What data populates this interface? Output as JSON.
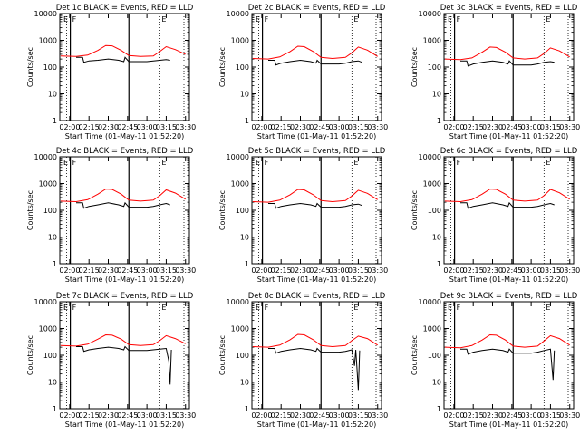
{
  "figure": {
    "y_ticks": [
      "10000",
      "1000",
      "100",
      "10",
      "1"
    ],
    "x_ticks": [
      "02:00",
      "02:15",
      "02:30",
      "02:45",
      "03:00",
      "03:15",
      "03:30"
    ],
    "ylabel": "Counts/sec",
    "xlabel": "Start Time (01-May-11 01:52:20)",
    "markers": [
      "E",
      "F",
      "E"
    ],
    "colors": {
      "events": "#000000",
      "lld": "#ff0000",
      "axes": "#000000"
    }
  },
  "chart_data": [
    {
      "type": "line",
      "title": "Det 1c BLACK = Events, RED = LLD",
      "ylim": [
        1,
        10000
      ],
      "yscale": "log",
      "xlim": [
        "01:52:20",
        "03:33:00"
      ],
      "markers": [
        "E",
        "F",
        "E"
      ],
      "series": [
        {
          "name": "LLD",
          "color": "#ff0000",
          "x": [
            "01:53",
            "02:05",
            "02:14",
            "02:22",
            "02:28",
            "02:33",
            "02:40",
            "02:46",
            "02:55",
            "03:05",
            "03:10",
            "03:15",
            "03:22",
            "03:30"
          ],
          "values": [
            260,
            250,
            280,
            420,
            640,
            620,
            420,
            270,
            250,
            260,
            380,
            580,
            450,
            300
          ]
        },
        {
          "name": "Events",
          "color": "#000000",
          "x": [
            "02:05",
            "02:10",
            "02:11",
            "02:15",
            "02:22",
            "02:30",
            "02:38",
            "02:42",
            "02:43",
            "02:46",
            "02:55",
            "03:00",
            "03:05",
            "03:10",
            "03:15",
            "03:18"
          ],
          "values": [
            230,
            230,
            150,
            170,
            180,
            200,
            180,
            160,
            230,
            160,
            160,
            160,
            170,
            180,
            190,
            180
          ]
        }
      ]
    },
    {
      "type": "line",
      "title": "Det 2c BLACK = Events, RED = LLD",
      "ylim": [
        1,
        10000
      ],
      "yscale": "log",
      "xlim": [
        "01:52:20",
        "03:33:00"
      ],
      "markers": [
        "E",
        "F",
        "E"
      ],
      "series": [
        {
          "name": "LLD",
          "color": "#ff0000",
          "x": [
            "01:53",
            "02:05",
            "02:14",
            "02:22",
            "02:28",
            "02:33",
            "02:40",
            "02:46",
            "02:55",
            "03:05",
            "03:10",
            "03:15",
            "03:22",
            "03:30"
          ],
          "values": [
            210,
            200,
            240,
            380,
            600,
            580,
            380,
            230,
            210,
            230,
            340,
            560,
            430,
            250
          ]
        },
        {
          "name": "Events",
          "color": "#000000",
          "x": [
            "02:05",
            "02:10",
            "02:11",
            "02:15",
            "02:22",
            "02:30",
            "02:38",
            "02:42",
            "02:43",
            "02:46",
            "02:55",
            "03:00",
            "03:05",
            "03:10",
            "03:15",
            "03:18"
          ],
          "values": [
            180,
            180,
            120,
            140,
            160,
            180,
            160,
            140,
            180,
            130,
            130,
            130,
            140,
            160,
            170,
            150
          ]
        }
      ]
    },
    {
      "type": "line",
      "title": "Det 3c BLACK = Events, RED = LLD",
      "ylim": [
        1,
        10000
      ],
      "yscale": "log",
      "xlim": [
        "01:52:20",
        "03:33:00"
      ],
      "markers": [
        "E",
        "F",
        "E"
      ],
      "series": [
        {
          "name": "LLD",
          "color": "#ff0000",
          "x": [
            "01:53",
            "02:05",
            "02:14",
            "02:22",
            "02:28",
            "02:33",
            "02:40",
            "02:46",
            "02:55",
            "03:05",
            "03:10",
            "03:15",
            "03:22",
            "03:30"
          ],
          "values": [
            200,
            190,
            220,
            360,
            560,
            540,
            360,
            220,
            200,
            220,
            320,
            520,
            400,
            240
          ]
        },
        {
          "name": "Events",
          "color": "#000000",
          "x": [
            "02:05",
            "02:10",
            "02:11",
            "02:15",
            "02:22",
            "02:30",
            "02:38",
            "02:42",
            "02:43",
            "02:46",
            "02:55",
            "03:00",
            "03:05",
            "03:10",
            "03:15",
            "03:18"
          ],
          "values": [
            170,
            170,
            110,
            130,
            150,
            170,
            150,
            130,
            170,
            120,
            120,
            120,
            130,
            150,
            160,
            150
          ]
        }
      ]
    },
    {
      "type": "line",
      "title": "Det 4c BLACK = Events, RED = LLD",
      "ylim": [
        1,
        10000
      ],
      "yscale": "log",
      "xlim": [
        "01:52:20",
        "03:33:00"
      ],
      "markers": [
        "E",
        "F",
        "E"
      ],
      "series": [
        {
          "name": "LLD",
          "color": "#ff0000",
          "x": [
            "01:53",
            "02:05",
            "02:14",
            "02:22",
            "02:28",
            "02:33",
            "02:40",
            "02:46",
            "02:55",
            "03:05",
            "03:10",
            "03:15",
            "03:22",
            "03:30"
          ],
          "values": [
            220,
            210,
            250,
            400,
            620,
            600,
            400,
            240,
            220,
            240,
            350,
            580,
            440,
            260
          ]
        },
        {
          "name": "Events",
          "color": "#000000",
          "x": [
            "02:05",
            "02:10",
            "02:11",
            "02:15",
            "02:22",
            "02:30",
            "02:38",
            "02:42",
            "02:43",
            "02:46",
            "02:55",
            "03:00",
            "03:05",
            "03:10",
            "03:15",
            "03:18"
          ],
          "values": [
            190,
            190,
            120,
            140,
            160,
            190,
            160,
            140,
            190,
            130,
            130,
            130,
            140,
            160,
            180,
            160
          ]
        }
      ]
    },
    {
      "type": "line",
      "title": "Det 5c BLACK = Events, RED = LLD",
      "ylim": [
        1,
        10000
      ],
      "yscale": "log",
      "xlim": [
        "01:52:20",
        "03:33:00"
      ],
      "markers": [
        "E",
        "F",
        "E"
      ],
      "series": [
        {
          "name": "LLD",
          "color": "#ff0000",
          "x": [
            "01:53",
            "02:05",
            "02:14",
            "02:22",
            "02:28",
            "02:33",
            "02:40",
            "02:46",
            "02:55",
            "03:05",
            "03:10",
            "03:15",
            "03:22",
            "03:30"
          ],
          "values": [
            210,
            200,
            240,
            380,
            600,
            580,
            380,
            230,
            210,
            230,
            340,
            560,
            430,
            250
          ]
        },
        {
          "name": "Events",
          "color": "#000000",
          "x": [
            "02:05",
            "02:10",
            "02:11",
            "02:15",
            "02:22",
            "02:30",
            "02:38",
            "02:42",
            "02:43",
            "02:46",
            "02:55",
            "03:00",
            "03:05",
            "03:10",
            "03:15",
            "03:18"
          ],
          "values": [
            180,
            180,
            120,
            140,
            160,
            180,
            160,
            140,
            180,
            130,
            130,
            130,
            140,
            160,
            170,
            150
          ]
        }
      ]
    },
    {
      "type": "line",
      "title": "Det 6c BLACK = Events, RED = LLD",
      "ylim": [
        1,
        10000
      ],
      "yscale": "log",
      "xlim": [
        "01:52:20",
        "03:33:00"
      ],
      "markers": [
        "E",
        "F",
        "E"
      ],
      "series": [
        {
          "name": "LLD",
          "color": "#ff0000",
          "x": [
            "01:53",
            "02:05",
            "02:14",
            "02:22",
            "02:28",
            "02:33",
            "02:40",
            "02:46",
            "02:55",
            "03:05",
            "03:10",
            "03:15",
            "03:22",
            "03:30"
          ],
          "values": [
            220,
            210,
            250,
            400,
            620,
            600,
            400,
            240,
            220,
            240,
            350,
            600,
            450,
            260
          ]
        },
        {
          "name": "Events",
          "color": "#000000",
          "x": [
            "02:05",
            "02:10",
            "02:11",
            "02:15",
            "02:22",
            "02:30",
            "02:38",
            "02:42",
            "02:43",
            "02:46",
            "02:55",
            "03:00",
            "03:05",
            "03:10",
            "03:15",
            "03:18"
          ],
          "values": [
            190,
            190,
            120,
            140,
            160,
            190,
            160,
            140,
            190,
            130,
            130,
            130,
            140,
            160,
            180,
            160
          ]
        }
      ]
    },
    {
      "type": "line",
      "title": "Det 7c BLACK = Events, RED = LLD",
      "ylim": [
        1,
        10000
      ],
      "yscale": "log",
      "xlim": [
        "01:52:20",
        "03:33:00"
      ],
      "markers": [
        "E",
        "F",
        "E"
      ],
      "series": [
        {
          "name": "LLD",
          "color": "#ff0000",
          "x": [
            "01:53",
            "02:05",
            "02:14",
            "02:22",
            "02:28",
            "02:33",
            "02:40",
            "02:46",
            "02:55",
            "03:05",
            "03:10",
            "03:15",
            "03:22",
            "03:30"
          ],
          "values": [
            230,
            220,
            260,
            400,
            580,
            560,
            400,
            250,
            230,
            250,
            350,
            540,
            420,
            270
          ]
        },
        {
          "name": "Events",
          "color": "#000000",
          "x": [
            "02:05",
            "02:10",
            "02:11",
            "02:15",
            "02:22",
            "02:30",
            "02:38",
            "02:42",
            "02:43",
            "02:46",
            "02:55",
            "03:00",
            "03:05",
            "03:10",
            "03:15",
            "03:17",
            "03:18",
            "03:19"
          ],
          "values": [
            210,
            210,
            140,
            160,
            180,
            200,
            180,
            160,
            210,
            150,
            150,
            150,
            160,
            170,
            180,
            60,
            8,
            160
          ]
        }
      ]
    },
    {
      "type": "line",
      "title": "Det 8c BLACK = Events, RED = LLD",
      "ylim": [
        1,
        10000
      ],
      "yscale": "log",
      "xlim": [
        "01:52:20",
        "03:33:00"
      ],
      "markers": [
        "E",
        "F",
        "E"
      ],
      "series": [
        {
          "name": "LLD",
          "color": "#ff0000",
          "x": [
            "01:53",
            "02:05",
            "02:14",
            "02:22",
            "02:28",
            "02:33",
            "02:40",
            "02:46",
            "02:55",
            "03:05",
            "03:10",
            "03:15",
            "03:22",
            "03:30"
          ],
          "values": [
            210,
            200,
            240,
            380,
            600,
            580,
            380,
            230,
            210,
            230,
            350,
            520,
            420,
            240
          ]
        },
        {
          "name": "Events",
          "color": "#000000",
          "x": [
            "02:05",
            "02:10",
            "02:11",
            "02:15",
            "02:22",
            "02:30",
            "02:38",
            "02:42",
            "02:43",
            "02:46",
            "02:55",
            "03:00",
            "03:05",
            "03:10",
            "03:12",
            "03:13",
            "03:14",
            "03:15",
            "03:16"
          ],
          "values": [
            180,
            180,
            120,
            140,
            160,
            180,
            160,
            140,
            180,
            130,
            130,
            130,
            140,
            160,
            40,
            160,
            30,
            5,
            150
          ]
        }
      ]
    },
    {
      "type": "line",
      "title": "Det 9c BLACK = Events, RED = LLD",
      "ylim": [
        1,
        10000
      ],
      "yscale": "log",
      "xlim": [
        "01:52:20",
        "03:33:00"
      ],
      "markers": [
        "E",
        "F",
        "E"
      ],
      "series": [
        {
          "name": "LLD",
          "color": "#ff0000",
          "x": [
            "01:53",
            "02:05",
            "02:14",
            "02:22",
            "02:28",
            "02:33",
            "02:40",
            "02:46",
            "02:55",
            "03:05",
            "03:10",
            "03:15",
            "03:22",
            "03:30"
          ],
          "values": [
            200,
            190,
            230,
            370,
            580,
            560,
            370,
            220,
            200,
            220,
            340,
            540,
            420,
            240
          ]
        },
        {
          "name": "Events",
          "color": "#000000",
          "x": [
            "02:05",
            "02:10",
            "02:11",
            "02:15",
            "02:22",
            "02:30",
            "02:38",
            "02:42",
            "02:43",
            "02:46",
            "02:55",
            "03:00",
            "03:05",
            "03:10",
            "03:15",
            "03:17",
            "03:18"
          ],
          "values": [
            170,
            170,
            110,
            130,
            150,
            170,
            150,
            130,
            170,
            120,
            120,
            120,
            130,
            150,
            170,
            12,
            150
          ]
        }
      ]
    }
  ]
}
